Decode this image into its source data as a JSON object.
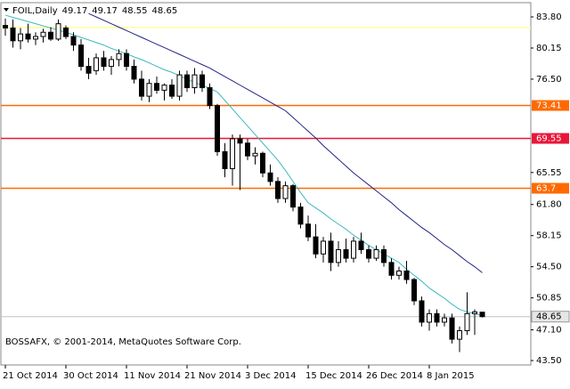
{
  "chart_data": {
    "type": "candlestick",
    "title": "FOIL,Daily",
    "copyright": "BOSSAFX, © 2001-2014, MetaQuotes Software Corp.",
    "categories": [
      "21 Oct 2014",
      null,
      null,
      null,
      null,
      null,
      null,
      null,
      "30 Oct 2014",
      null,
      null,
      null,
      null,
      null,
      null,
      null,
      "11 Nov 2014",
      null,
      null,
      null,
      null,
      null,
      null,
      null,
      "21 Nov 2014",
      null,
      null,
      null,
      null,
      null,
      null,
      null,
      "3 Dec 2014",
      null,
      null,
      null,
      null,
      null,
      null,
      null,
      "15 Dec 2014",
      null,
      null,
      null,
      null,
      null,
      null,
      null,
      "26 Dec 2014",
      null,
      null,
      null,
      null,
      null,
      null,
      null,
      "8 Jan 2015",
      null,
      null,
      null,
      null,
      null,
      null,
      null
    ],
    "open": [
      82.8,
      82.5,
      81.0,
      81.8,
      81.2,
      81.5,
      82.0,
      81.2,
      82.5,
      81.5,
      80.5,
      78.0,
      77.5,
      79.0,
      78.0,
      78.8,
      79.5,
      78.0,
      76.5,
      74.5,
      76.0,
      75.2,
      75.8,
      74.5,
      77.0,
      75.5,
      77.0,
      75.5,
      73.4,
      68.0,
      66.0,
      69.5,
      69.0,
      67.5,
      67.8,
      65.5,
      64.5,
      62.5,
      64.0,
      61.5,
      59.5,
      58.0,
      56.0,
      57.5,
      55.0,
      56.5,
      55.5,
      57.5,
      56.5,
      55.5,
      56.5,
      55.0,
      53.5,
      54.0,
      53.0,
      50.5,
      48.0,
      49.0,
      48.0,
      48.5,
      46.0,
      47.0,
      49.0,
      49.17
    ],
    "high": [
      83.6,
      83.5,
      82.5,
      83.0,
      82.0,
      82.4,
      82.6,
      83.5,
      82.8,
      82.0,
      81.2,
      79.0,
      79.5,
      79.8,
      79.2,
      80.0,
      80.0,
      78.8,
      77.5,
      76.5,
      76.8,
      76.0,
      76.5,
      77.5,
      77.5,
      77.8,
      77.5,
      76.0,
      73.6,
      69.0,
      70.0,
      70.0,
      69.5,
      68.5,
      68.0,
      66.5,
      65.0,
      64.5,
      64.2,
      62.0,
      60.5,
      59.5,
      58.0,
      58.5,
      57.5,
      57.8,
      58.0,
      58.5,
      57.0,
      57.0,
      57.0,
      55.5,
      54.5,
      55.2,
      53.2,
      51.0,
      49.5,
      49.5,
      49.0,
      49.0,
      47.5,
      51.5,
      49.5,
      49.17
    ],
    "low": [
      81.6,
      80.2,
      80.0,
      80.8,
      80.5,
      80.8,
      81.0,
      81.0,
      81.2,
      79.8,
      77.5,
      76.5,
      77.0,
      77.5,
      77.0,
      78.0,
      77.5,
      76.0,
      74.0,
      73.8,
      74.8,
      74.0,
      74.2,
      74.0,
      75.0,
      74.8,
      75.0,
      73.0,
      67.5,
      65.0,
      64.0,
      63.5,
      67.0,
      66.5,
      65.0,
      64.0,
      62.0,
      62.0,
      61.0,
      59.0,
      57.5,
      55.5,
      55.0,
      54.0,
      54.5,
      55.0,
      55.0,
      56.0,
      55.0,
      55.2,
      54.5,
      53.0,
      53.0,
      52.5,
      50.0,
      47.5,
      47.0,
      47.5,
      47.5,
      45.5,
      44.5,
      46.5,
      46.5,
      48.55
    ],
    "close": [
      82.5,
      81.0,
      81.8,
      81.2,
      81.5,
      82.0,
      81.2,
      83.0,
      81.5,
      80.5,
      78.0,
      77.2,
      79.0,
      78.0,
      78.8,
      79.5,
      78.0,
      76.5,
      74.5,
      76.0,
      75.2,
      75.8,
      74.5,
      77.0,
      75.5,
      77.0,
      75.5,
      73.4,
      68.0,
      66.0,
      69.5,
      69.0,
      67.5,
      67.8,
      65.5,
      64.5,
      62.5,
      64.0,
      61.5,
      59.5,
      58.0,
      56.0,
      57.5,
      55.0,
      56.5,
      55.5,
      57.5,
      56.5,
      55.5,
      56.5,
      55.0,
      53.5,
      54.0,
      53.0,
      50.5,
      48.0,
      49.0,
      48.0,
      48.5,
      46.0,
      47.0,
      49.0,
      49.2,
      48.65
    ],
    "up_color": "#ffffff",
    "down_color": "#000000",
    "overlays": [
      {
        "color": "#3cb8c0",
        "values": [
          84.0,
          83.75,
          83.5,
          83.25,
          83.0,
          82.75,
          82.5,
          82.25,
          82.0,
          81.7,
          81.4,
          81.1,
          80.8,
          80.5,
          80.1,
          79.8,
          79.5,
          79.1,
          78.8,
          78.4,
          78.0,
          77.6,
          77.3,
          76.9,
          76.5,
          76.1,
          75.8,
          75.4,
          75.0,
          74.0,
          73.0,
          72.0,
          71.0,
          70.0,
          69.0,
          68.0,
          67.0,
          65.8,
          64.5,
          63.2,
          62.0,
          61.4,
          60.8,
          60.1,
          59.5,
          58.9,
          58.2,
          57.6,
          57.0,
          56.5,
          56.0,
          55.5,
          55.0,
          54.2,
          53.5,
          52.8,
          52.0,
          51.4,
          50.8,
          50.1,
          49.5,
          49.2,
          49.0,
          48.8
        ]
      },
      {
        "color": "#232385",
        "values": [
          null,
          null,
          null,
          null,
          null,
          null,
          null,
          null,
          null,
          null,
          null,
          84.2,
          83.8,
          83.4,
          83.0,
          82.6,
          82.2,
          81.8,
          81.4,
          81.0,
          80.6,
          80.2,
          79.8,
          79.4,
          79.0,
          78.6,
          78.2,
          77.8,
          77.3,
          76.8,
          76.3,
          75.8,
          75.3,
          74.8,
          74.3,
          73.8,
          73.3,
          72.8,
          72.0,
          71.2,
          70.4,
          69.6,
          68.7,
          67.9,
          67.1,
          66.3,
          65.5,
          64.8,
          64.1,
          63.4,
          62.7,
          62.0,
          61.2,
          60.5,
          59.8,
          59.1,
          58.5,
          57.8,
          57.1,
          56.5,
          55.8,
          55.1,
          54.5,
          53.8
        ]
      }
    ],
    "levels": [
      {
        "value": 82.55,
        "color": "#ffff99",
        "show_label": false
      },
      {
        "value": 73.41,
        "color": "#ff6a00",
        "show_label": true
      },
      {
        "value": 69.55,
        "color": "#e8173a",
        "show_label": true
      },
      {
        "value": 63.7,
        "color": "#ff6a00",
        "show_label": true
      }
    ],
    "ylim": [
      42.98,
      85.47
    ],
    "yticks": [
      {
        "value": 83.8,
        "label": "83.80"
      },
      {
        "value": 80.15,
        "label": "80.15"
      },
      {
        "value": 76.5,
        "label": "76.50"
      },
      {
        "value": 65.55,
        "label": "65.55"
      },
      {
        "value": 61.8,
        "label": "61.80"
      },
      {
        "value": 58.15,
        "label": "58.15"
      },
      {
        "value": 54.5,
        "label": "54.50"
      },
      {
        "value": 50.85,
        "label": "50.85"
      },
      {
        "value": 47.1,
        "label": "47.10"
      },
      {
        "value": 43.5,
        "label": "43.50"
      }
    ],
    "grid": false
  }
}
